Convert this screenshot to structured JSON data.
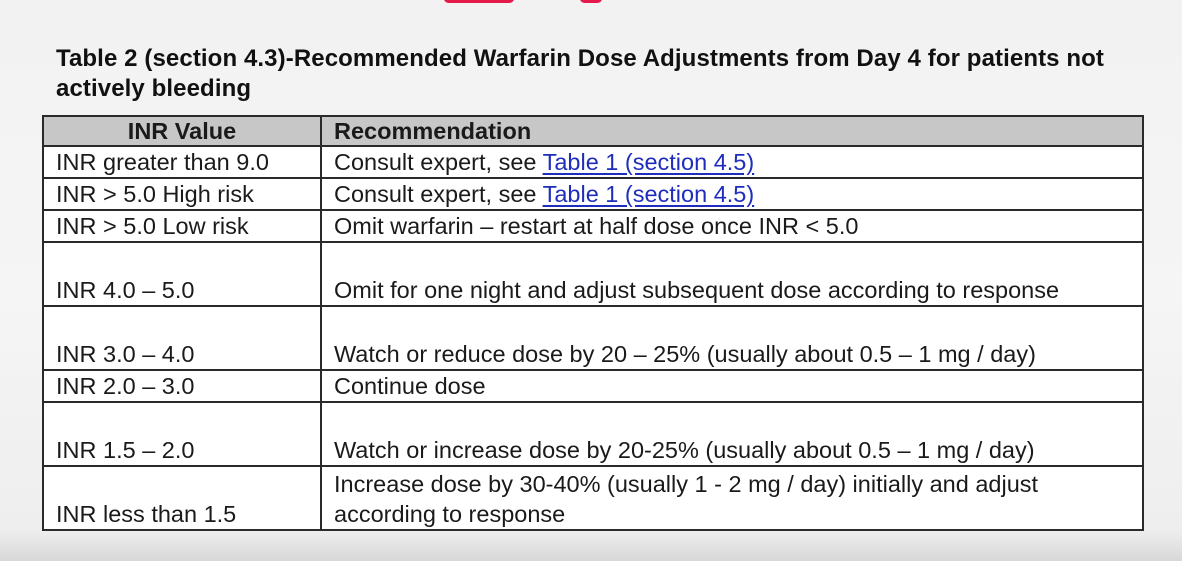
{
  "title": "Table 2 (section 4.3)-Recommended Warfarin Dose Adjustments from Day 4 for patients not actively bleeding",
  "colors": {
    "header_bg": "#c7c7c7",
    "link": "#1f2dbd",
    "accent_red": "#e6194b"
  },
  "table": {
    "headers": [
      "INR Value",
      "Recommendation"
    ],
    "rows": [
      {
        "inr": "INR greater than 9.0",
        "text": "Consult expert, see ",
        "link": "Table 1 (section 4.5)"
      },
      {
        "inr": "INR > 5.0 High risk",
        "text": "Consult expert, see ",
        "link": "Table 1 (section 4.5)"
      },
      {
        "inr": "INR > 5.0 Low risk",
        "text": "Omit warfarin – restart at half dose once INR < 5.0"
      },
      {
        "inr": "INR 4.0 – 5.0",
        "text": "Omit for one night and adjust subsequent dose according to response"
      },
      {
        "inr": "INR 3.0 – 4.0",
        "text": "Watch or reduce dose by 20 – 25% (usually about 0.5 – 1 mg / day)"
      },
      {
        "inr": "INR 2.0 – 3.0",
        "text": "Continue dose"
      },
      {
        "inr": "INR 1.5 – 2.0",
        "text": "Watch or increase dose by 20-25% (usually about 0.5 – 1 mg / day)"
      },
      {
        "inr": "INR less than 1.5",
        "text": "Increase dose by 30-40% (usually 1 - 2 mg / day) initially and adjust according to response"
      }
    ]
  }
}
